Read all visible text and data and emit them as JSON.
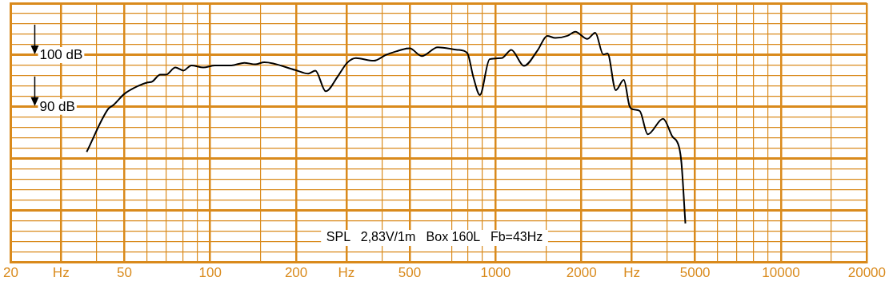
{
  "chart_data": {
    "type": "line",
    "log": "x",
    "grid": true,
    "legend": false,
    "marker": "none",
    "line_style": "solid",
    "xlim": [
      20,
      20000
    ],
    "ylim": [
      60,
      110
    ],
    "xticks": [
      20,
      {
        "value": 30,
        "label": "Hz"
      },
      {
        "value": 40,
        "label": null
      },
      50,
      {
        "value": 60,
        "label": null
      },
      {
        "value": 70,
        "label": null
      },
      {
        "value": 80,
        "label": null
      },
      {
        "value": 90,
        "label": null
      },
      100,
      {
        "value": 150,
        "label": null
      },
      200,
      {
        "value": 300,
        "label": "Hz"
      },
      {
        "value": 400,
        "label": null
      },
      500,
      {
        "value": 700,
        "label": null
      },
      {
        "value": 800,
        "label": null
      },
      {
        "value": 900,
        "label": null
      },
      1000,
      {
        "value": 1500,
        "label": null
      },
      2000,
      {
        "value": 3000,
        "label": "Hz"
      },
      {
        "value": 4000,
        "label": null
      },
      5000,
      {
        "value": 6000,
        "label": null
      },
      {
        "value": 7000,
        "label": null
      },
      {
        "value": 8000,
        "label": null
      },
      {
        "value": 9000,
        "label": null
      },
      10000,
      {
        "value": 15000,
        "label": null
      },
      20000
    ],
    "yticks": [
      {
        "value": 60,
        "label": null
      },
      {
        "value": 62,
        "label": null
      },
      {
        "value": 64,
        "label": null
      },
      {
        "value": 66,
        "label": null
      },
      {
        "value": 68,
        "label": null
      },
      {
        "value": 70,
        "label": null
      },
      {
        "value": 72,
        "label": null
      },
      {
        "value": 74,
        "label": null
      },
      {
        "value": 76,
        "label": null
      },
      {
        "value": 78,
        "label": null
      },
      {
        "value": 80,
        "label": null
      },
      {
        "value": 82,
        "label": null
      },
      {
        "value": 84,
        "label": null
      },
      {
        "value": 86,
        "label": null
      },
      {
        "value": 88,
        "label": null
      },
      {
        "value": 90,
        "label": "90 dB"
      },
      {
        "value": 92,
        "label": null
      },
      {
        "value": 94,
        "label": null
      },
      {
        "value": 96,
        "label": null
      },
      {
        "value": 98,
        "label": null
      },
      {
        "value": 100,
        "label": "100 dB"
      },
      {
        "value": 102,
        "label": null
      },
      {
        "value": 104,
        "label": null
      },
      {
        "value": 106,
        "label": null
      },
      {
        "value": 108,
        "label": null
      },
      {
        "value": 110,
        "label": null
      }
    ],
    "annotations": [
      "SPL   2,83V/1m   Box 160L   Fb=43Hz"
    ],
    "series": [
      {
        "color": "#000000",
        "x": [
          36.9,
          43.9,
          45.9,
          50,
          55.7,
          60.3,
          62.7,
          66.8,
          69.9,
          75.5,
          80.5,
          85.9,
          94.6,
          104,
          118.6,
          131.6,
          143.9,
          154.6,
          198.6,
          220.4,
          233.5,
          254,
          280,
          302,
          324,
          374,
          412,
          448,
          500,
          551,
          627,
          736,
          795,
          837,
          881,
          953,
          1050,
          1135,
          1257,
          1403,
          1517,
          1618,
          1784,
          1902,
          2095,
          2235,
          2384,
          2468,
          2637,
          2813,
          2945,
          3041,
          3200,
          3413,
          3863,
          4150,
          4397,
          4479,
          4624
        ],
        "values": [
          81.3,
          89.6,
          90.4,
          92.5,
          94.0,
          94.7,
          94.9,
          96.2,
          96.2,
          97.6,
          97.0,
          98.0,
          97.6,
          98.0,
          98.0,
          98.5,
          98.2,
          98.6,
          97.1,
          96.4,
          97.0,
          93.0,
          95.9,
          98.5,
          99.4,
          98.9,
          100.0,
          100.7,
          101.3,
          99.8,
          101.5,
          101.0,
          100.4,
          95.6,
          92.3,
          99.2,
          99.4,
          101.0,
          97.9,
          100.9,
          103.7,
          103.3,
          103.7,
          104.5,
          103.1,
          104.3,
          100.1,
          100.3,
          93.2,
          95.2,
          90.2,
          89.5,
          89.2,
          84.7,
          87.7,
          84.4,
          82.2,
          79.2,
          67.5
        ]
      }
    ]
  }
}
